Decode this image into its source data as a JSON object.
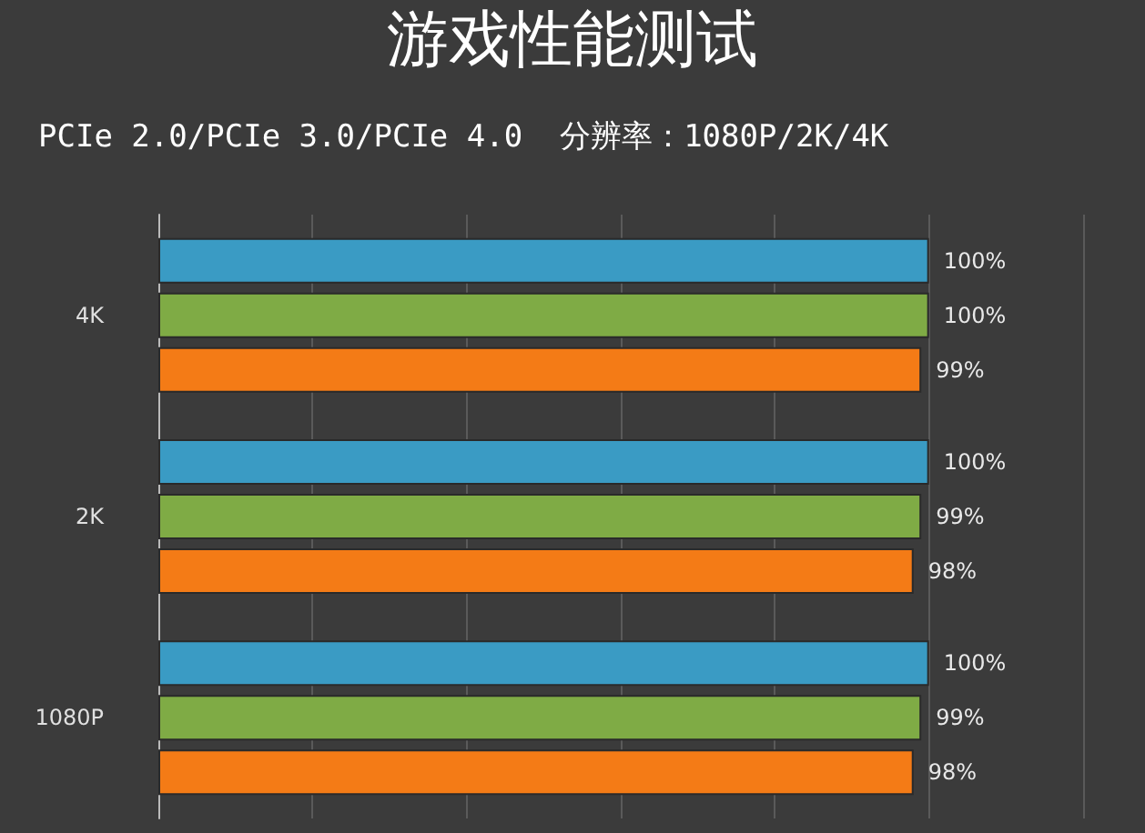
{
  "chart_data": {
    "type": "bar",
    "orientation": "horizontal",
    "title": "游戏性能测试",
    "subtitle": "PCIe 2.0/PCIe 3.0/PCIe 4.0  分辨率：1080P/2K/4K",
    "categories": [
      "4K",
      "2K",
      "1080P"
    ],
    "series": [
      {
        "color": "#3a9bc4",
        "values": [
          100,
          100,
          100
        ],
        "value_labels": [
          "100%",
          "100%",
          "100%"
        ]
      },
      {
        "color": "#7fab45",
        "values": [
          100,
          99,
          99
        ],
        "value_labels": [
          "100%",
          "99%",
          "99%"
        ]
      },
      {
        "color": "#f47b16",
        "values": [
          99,
          98,
          98
        ],
        "value_labels": [
          "99%",
          "98%",
          "98%"
        ]
      }
    ],
    "xlim": [
      0,
      120
    ],
    "xticks": [
      {
        "value": 0,
        "label": null
      },
      {
        "value": 20,
        "label": null
      },
      {
        "value": 40,
        "label": null
      },
      {
        "value": 60,
        "label": null
      },
      {
        "value": 80,
        "label": null
      },
      {
        "value": 100,
        "label": null
      },
      {
        "value": 120,
        "label": null
      }
    ],
    "grid": "x"
  }
}
